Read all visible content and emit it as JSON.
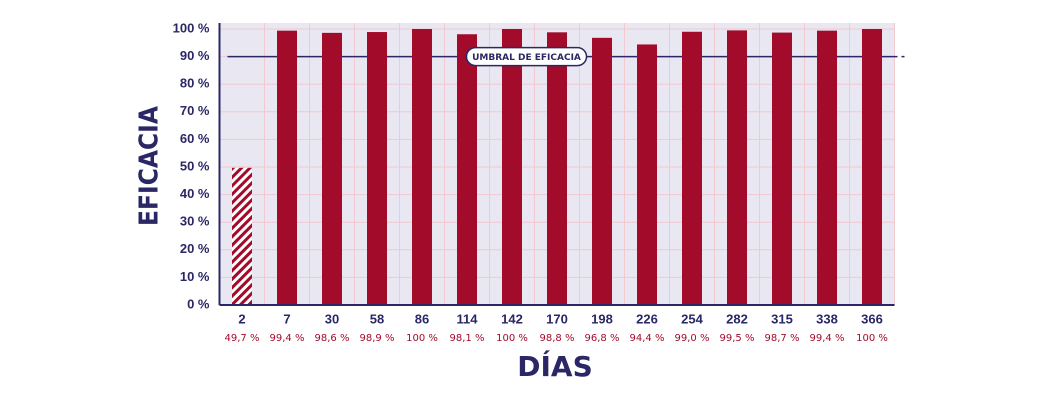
{
  "chart_data": {
    "type": "bar",
    "x_label": "DÍAS",
    "y_label": "EFICACIA",
    "categories": [
      "2",
      "7",
      "30",
      "58",
      "86",
      "114",
      "142",
      "170",
      "198",
      "226",
      "254",
      "282",
      "315",
      "338",
      "366"
    ],
    "values": [
      49.7,
      99.4,
      98.6,
      98.9,
      100,
      98.1,
      100,
      98.8,
      96.8,
      94.4,
      99.0,
      99.5,
      98.7,
      99.4,
      100
    ],
    "value_labels": [
      "49,7 %",
      "99,4 %",
      "98,6 %",
      "98,9 %",
      "100 %",
      "98,1 %",
      "100 %",
      "98,8 %",
      "96,8 %",
      "94,4 %",
      "99,0 %",
      "99,5 %",
      "98,7 %",
      "99,4 %",
      "100 %"
    ],
    "color": "#a30b2b",
    "hatched_index": 0,
    "ylim": [
      0,
      100
    ],
    "yticks": [
      {
        "value": 0,
        "label": "0 %"
      },
      {
        "value": 10,
        "label": "10 %"
      },
      {
        "value": 20,
        "label": "20 %"
      },
      {
        "value": 30,
        "label": "30 %"
      },
      {
        "value": 40,
        "label": "40 %"
      },
      {
        "value": 50,
        "label": "50 %"
      },
      {
        "value": 60,
        "label": "60 %"
      },
      {
        "value": 70,
        "label": "70 %"
      },
      {
        "value": 80,
        "label": "80 %"
      },
      {
        "value": 90,
        "label": "90 %"
      },
      {
        "value": 100,
        "label": "100 %"
      }
    ],
    "grid": true,
    "threshold": {
      "value": 90,
      "label": "UMBRAL DE EFICACIA"
    }
  }
}
